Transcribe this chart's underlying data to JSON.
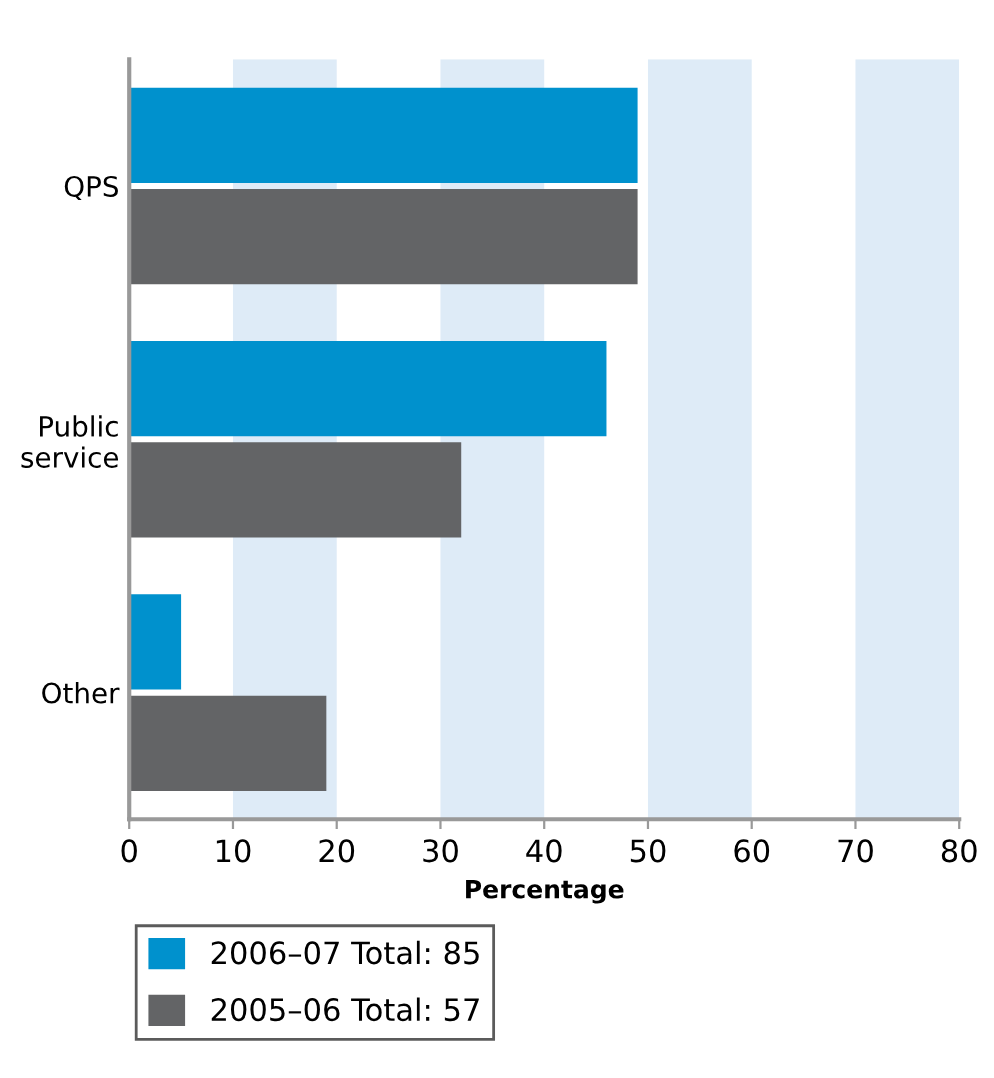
{
  "chart_data": {
    "type": "bar",
    "orientation": "horizontal",
    "xlabel": "Percentage",
    "categories": [
      "QPS",
      "Public\nservice",
      "Other"
    ],
    "series": [
      {
        "name": "2006–07 Total: 85",
        "color": "#0091cd",
        "values": [
          49,
          46,
          5
        ]
      },
      {
        "name": "2005–06 Total: 57",
        "color": "#636466",
        "values": [
          49,
          32,
          19
        ]
      }
    ],
    "xlim": [
      0,
      80
    ],
    "xticks": [
      0,
      10,
      20,
      30,
      40,
      50,
      60,
      70,
      80
    ],
    "bands": [
      {
        "axis": "x",
        "from": 10,
        "to": 20,
        "color": "#deebf7"
      },
      {
        "axis": "x",
        "from": 30,
        "to": 40,
        "color": "#deebf7"
      },
      {
        "axis": "x",
        "from": 50,
        "to": 60,
        "color": "#deebf7"
      },
      {
        "axis": "x",
        "from": 70,
        "to": 80,
        "color": "#deebf7"
      }
    ],
    "grid": false,
    "legend": "bottom"
  }
}
